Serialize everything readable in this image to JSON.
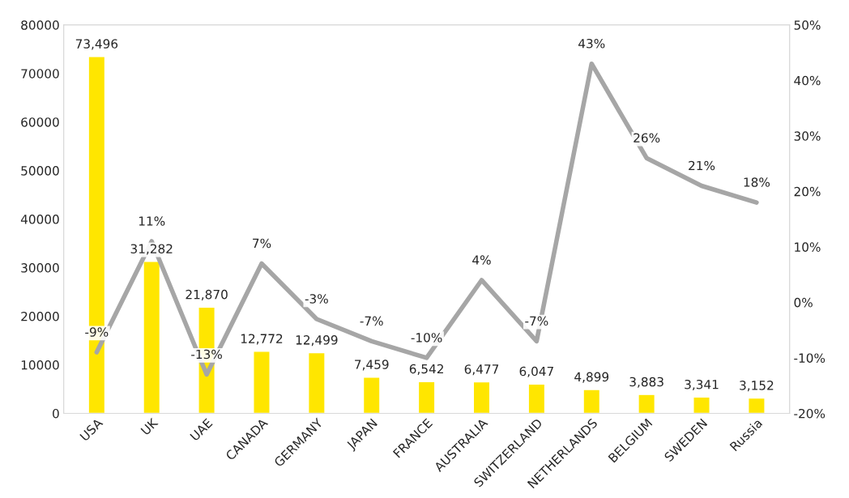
{
  "chart_data": {
    "type": "bar",
    "categories": [
      "USA",
      "UK",
      "UAE",
      "CANADA",
      "GERMANY",
      "JAPAN",
      "FRANCE",
      "AUSTRALIA",
      "SWITZERLAND",
      "NETHERLANDS",
      "BELGIUM",
      "SWEDEN",
      "Russia"
    ],
    "series": [
      {
        "color": "#ffe600",
        "values": [
          73496,
          31282,
          21870,
          12772,
          12499,
          7459,
          6542,
          6477,
          6047,
          4899,
          3883,
          3341,
          3152
        ],
        "value_labels": [
          "73,496",
          "31,282",
          "21,870",
          "12,772",
          "12,499",
          "7,459",
          "6,542",
          "6,477",
          "6,047",
          "4,899",
          "3,883",
          "3,341",
          "3,152"
        ]
      },
      {
        "type": "line",
        "axis": "y2",
        "color": "#a6a6a6",
        "values": [
          -9,
          11,
          -13,
          7,
          -3,
          -7,
          -10,
          4,
          -7,
          43,
          26,
          21,
          18
        ],
        "value_labels": [
          "-9%",
          "11%",
          "-13%",
          "7%",
          "-3%",
          "-7%",
          "-10%",
          "4%",
          "-7%",
          "43%",
          "26%",
          "21%",
          "18%"
        ]
      }
    ],
    "ylim": [
      0,
      80000
    ],
    "yticks": [
      0,
      10000,
      20000,
      30000,
      40000,
      50000,
      60000,
      70000,
      80000
    ],
    "y2lim": [
      -20,
      50
    ],
    "y2ticks": [
      {
        "value": -20,
        "label": "-20%"
      },
      {
        "value": -10,
        "label": "-10%"
      },
      {
        "value": 0,
        "label": "0%"
      },
      {
        "value": 10,
        "label": "10%"
      },
      {
        "value": 20,
        "label": "20%"
      },
      {
        "value": 30,
        "label": "30%"
      },
      {
        "value": 40,
        "label": "40%"
      },
      {
        "value": 50,
        "label": "50%"
      }
    ],
    "grid": false,
    "legend": false,
    "marker": "none",
    "line_style": "solid"
  }
}
